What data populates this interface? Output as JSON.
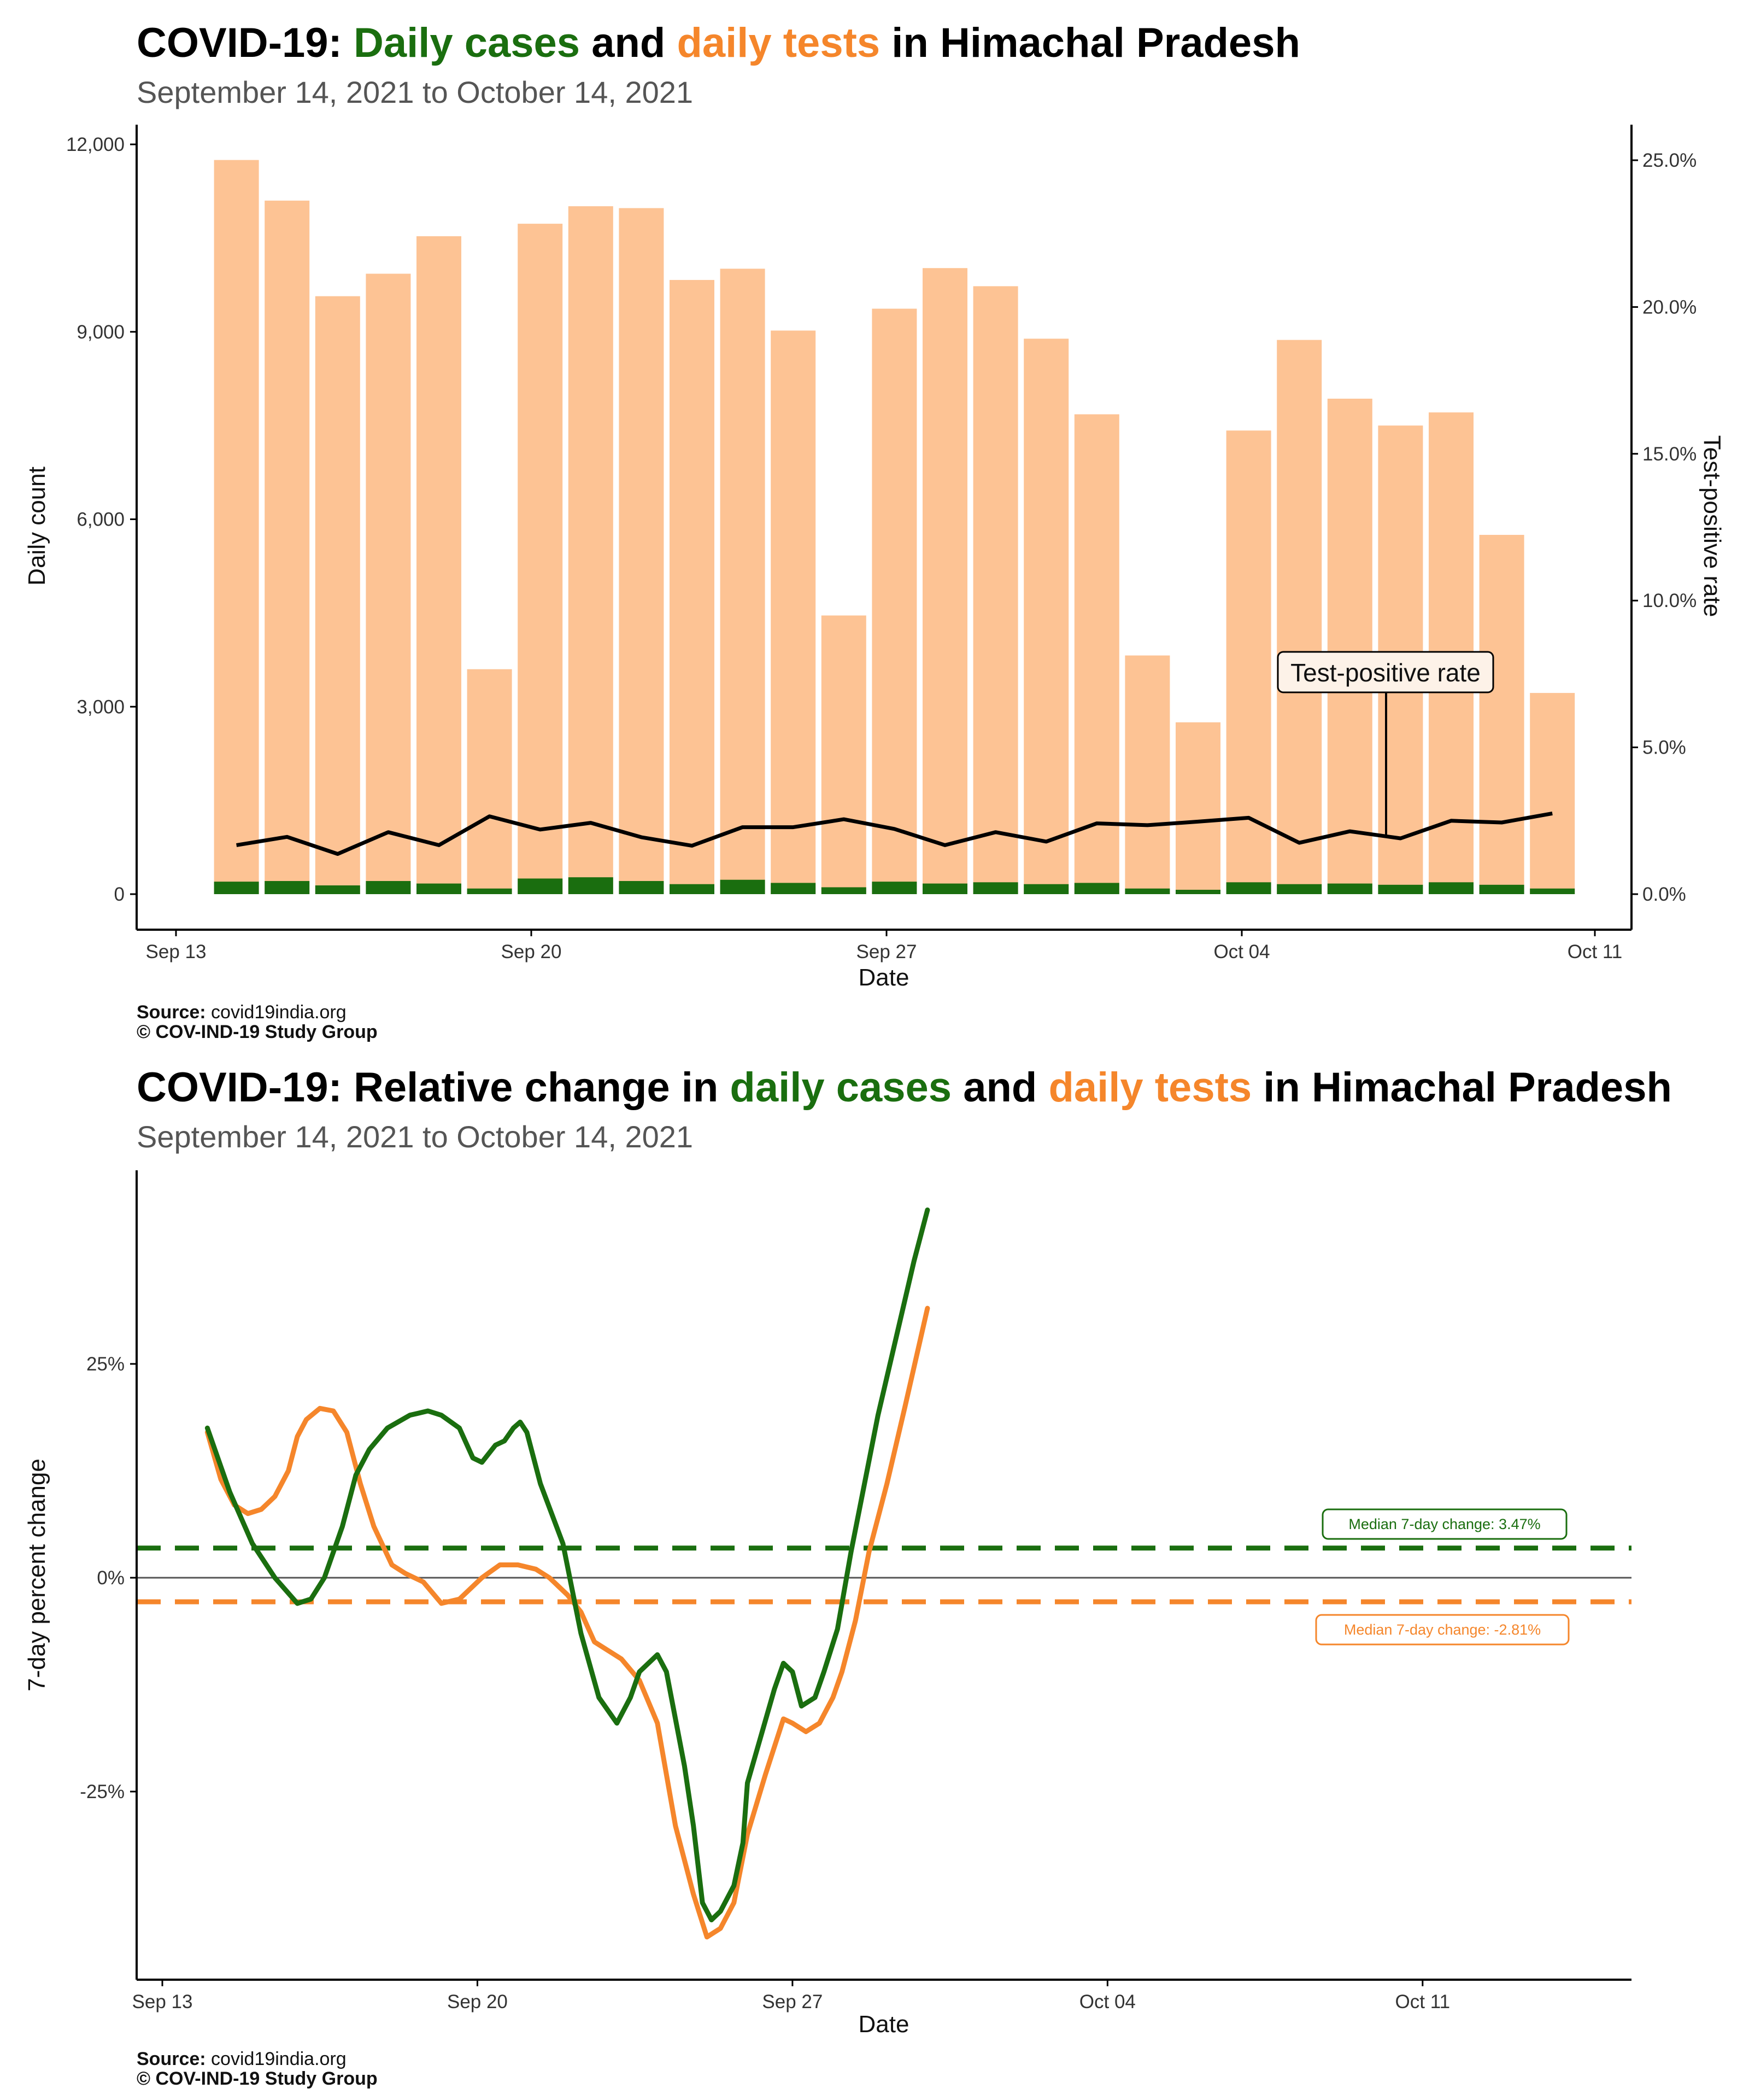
{
  "colors": {
    "cases": "#1a6e0f",
    "tests": "#f5862b",
    "tests_bar": "#fdc394",
    "tpr_line": "#000000",
    "zero_line": "#555555"
  },
  "top": {
    "title": {
      "prefix": "COVID-19: ",
      "cases": "Daily cases",
      "and": " and ",
      "tests": "daily tests",
      "suffix": " in Himachal Pradesh"
    },
    "subtitle": "September 14, 2021 to October 14, 2021",
    "y_left_label": "Daily count",
    "y_right_label": "Test-positive rate",
    "x_label": "Date",
    "annotation": "Test-positive rate",
    "caption_source_label": "Source:",
    "caption_source": " covid19india.org",
    "caption_credit": "© COV-IND-19 Study Group"
  },
  "bottom": {
    "title": {
      "prefix": "COVID-19: Relative change in ",
      "cases": "daily cases",
      "and": " and ",
      "tests": "daily tests",
      "suffix": " in Himachal Pradesh"
    },
    "subtitle": "September 14, 2021 to October 14, 2021",
    "y_label": "7-day percent change",
    "x_label": "Date",
    "median_cases_label": "Median 7-day change: 3.47%",
    "median_tests_label": "Median 7-day change: -2.81%",
    "caption_source_label": "Source:",
    "caption_source": " covid19india.org",
    "caption_credit": "© COV-IND-19 Study Group"
  },
  "chart_data": [
    {
      "type": "bar",
      "title": "COVID-19: Daily cases and daily tests in Himachal Pradesh",
      "subtitle": "September 14, 2021 to October 14, 2021",
      "xlabel": "Date",
      "ylabel": "Daily count",
      "y2label": "Test-positive rate",
      "x_ticks": [
        "Sep 13",
        "Sep 20",
        "Sep 27",
        "Oct 04",
        "Oct 11"
      ],
      "y_ticks": [
        "0",
        "3,000",
        "6,000",
        "9,000",
        "12,000"
      ],
      "y2_ticks": [
        "0.0%",
        "5.0%",
        "10.0%",
        "15.0%",
        "20.0%",
        "25.0%"
      ],
      "ylim": [
        0,
        12000
      ],
      "y2lim": [
        0,
        25
      ],
      "x_start_date": "2021-09-14",
      "categories": [
        "Sep 14",
        "Sep 15",
        "Sep 16",
        "Sep 17",
        "Sep 18",
        "Sep 19",
        "Sep 20",
        "Sep 21",
        "Sep 22",
        "Sep 23",
        "Sep 24",
        "Sep 25",
        "Sep 26",
        "Sep 27",
        "Sep 28",
        "Sep 29",
        "Sep 30",
        "Oct 01",
        "Oct 02",
        "Oct 03",
        "Oct 04",
        "Oct 05",
        "Oct 06",
        "Oct 07",
        "Oct 08",
        "Oct 09",
        "Oct 10",
        "Oct 11"
      ],
      "series": [
        {
          "name": "daily tests",
          "values": [
            11750,
            11100,
            9570,
            9930,
            10530,
            3600,
            10730,
            11010,
            10980,
            9830,
            10010,
            9020,
            4460,
            9370,
            10020,
            9730,
            8890,
            7680,
            3820,
            2750,
            7420,
            8870,
            7930,
            7500,
            7710,
            5750,
            3220,
            0
          ]
        },
        {
          "name": "daily cases",
          "values": [
            200,
            210,
            140,
            210,
            170,
            90,
            250,
            270,
            210,
            160,
            230,
            180,
            110,
            200,
            170,
            190,
            160,
            180,
            90,
            70,
            190,
            160,
            170,
            150,
            190,
            150,
            90,
            0
          ]
        },
        {
          "name": "Test-positive rate",
          "values": [
            1.67,
            1.95,
            1.37,
            2.11,
            1.67,
            2.65,
            2.2,
            2.43,
            1.94,
            1.65,
            2.28,
            2.28,
            2.55,
            2.22,
            1.67,
            2.11,
            1.79,
            2.41,
            2.35,
            2.47,
            2.6,
            1.75,
            2.14,
            1.9,
            2.5,
            2.44,
            2.75,
            null
          ]
        }
      ]
    },
    {
      "type": "line",
      "title": "COVID-19: Relative change in daily cases and daily tests in Himachal Pradesh",
      "subtitle": "September 14, 2021 to October 14, 2021",
      "xlabel": "Date",
      "ylabel": "7-day percent change",
      "x_ticks": [
        "Sep 13",
        "Sep 20",
        "Sep 27",
        "Oct 04",
        "Oct 11"
      ],
      "y_ticks": [
        "-25%",
        "0%",
        "25%"
      ],
      "ylim": [
        -46,
        47
      ],
      "x_start_date": "2021-09-13",
      "series": [
        {
          "name": "daily cases",
          "points": [
            [
              1.0,
              17.5
            ],
            [
              1.5,
              10
            ],
            [
              2.0,
              4
            ],
            [
              2.5,
              0
            ],
            [
              3.0,
              -3
            ],
            [
              3.3,
              -2.5
            ],
            [
              3.6,
              0
            ],
            [
              4.0,
              6
            ],
            [
              4.3,
              12
            ],
            [
              4.6,
              15
            ],
            [
              5.0,
              17.5
            ],
            [
              5.5,
              19
            ],
            [
              5.9,
              19.5
            ],
            [
              6.2,
              19
            ],
            [
              6.6,
              17.5
            ],
            [
              6.9,
              14
            ],
            [
              7.1,
              13.5
            ],
            [
              7.4,
              15.5
            ],
            [
              7.6,
              16
            ],
            [
              7.8,
              17.5
            ],
            [
              7.95,
              18.2
            ],
            [
              8.1,
              17
            ],
            [
              8.4,
              11
            ],
            [
              8.9,
              4
            ],
            [
              9.3,
              -6.5
            ],
            [
              9.7,
              -14
            ],
            [
              10.1,
              -17
            ],
            [
              10.4,
              -14
            ],
            [
              10.6,
              -11
            ],
            [
              11.0,
              -9
            ],
            [
              11.2,
              -11
            ],
            [
              11.6,
              -22
            ],
            [
              11.8,
              -29
            ],
            [
              12.0,
              -38
            ],
            [
              12.2,
              -40
            ],
            [
              12.4,
              -39
            ],
            [
              12.7,
              -36
            ],
            [
              12.9,
              -31
            ],
            [
              13.0,
              -24
            ],
            [
              13.3,
              -18.5
            ],
            [
              13.6,
              -13
            ],
            [
              13.8,
              -10
            ],
            [
              14.0,
              -11
            ],
            [
              14.2,
              -15
            ],
            [
              14.5,
              -14
            ],
            [
              14.7,
              -11
            ],
            [
              15.0,
              -6
            ],
            [
              15.3,
              3
            ],
            [
              15.6,
              11
            ],
            [
              15.9,
              19
            ],
            [
              16.3,
              28
            ],
            [
              16.7,
              37
            ],
            [
              17.0,
              43
            ]
          ]
        },
        {
          "name": "daily tests",
          "points": [
            [
              1.0,
              17
            ],
            [
              1.3,
              11.5
            ],
            [
              1.6,
              8.5
            ],
            [
              1.9,
              7.5
            ],
            [
              2.2,
              8
            ],
            [
              2.5,
              9.5
            ],
            [
              2.8,
              12.5
            ],
            [
              3.0,
              16.5
            ],
            [
              3.2,
              18.5
            ],
            [
              3.5,
              19.8
            ],
            [
              3.8,
              19.5
            ],
            [
              4.1,
              17
            ],
            [
              4.4,
              11
            ],
            [
              4.7,
              6
            ],
            [
              5.1,
              1.5
            ],
            [
              5.4,
              0.5
            ],
            [
              5.8,
              -0.5
            ],
            [
              6.2,
              -3
            ],
            [
              6.6,
              -2.5
            ],
            [
              7.1,
              0
            ],
            [
              7.5,
              1.5
            ],
            [
              7.9,
              1.5
            ],
            [
              8.3,
              1
            ],
            [
              8.6,
              0
            ],
            [
              9.0,
              -2
            ],
            [
              9.3,
              -4
            ],
            [
              9.6,
              -7.5
            ],
            [
              9.9,
              -8.5
            ],
            [
              10.2,
              -9.5
            ],
            [
              10.6,
              -12
            ],
            [
              11.0,
              -17
            ],
            [
              11.4,
              -29
            ],
            [
              11.8,
              -37
            ],
            [
              12.1,
              -42
            ],
            [
              12.4,
              -41
            ],
            [
              12.7,
              -38
            ],
            [
              13.0,
              -30
            ],
            [
              13.4,
              -23
            ],
            [
              13.8,
              -16.5
            ],
            [
              14.0,
              -17
            ],
            [
              14.3,
              -18
            ],
            [
              14.6,
              -17
            ],
            [
              14.9,
              -14
            ],
            [
              15.1,
              -11
            ],
            [
              15.4,
              -5
            ],
            [
              15.7,
              3
            ],
            [
              16.1,
              11
            ],
            [
              16.5,
              20
            ],
            [
              17.0,
              31.5
            ]
          ]
        }
      ],
      "reference_lines": [
        {
          "name": "daily cases median",
          "y": 3.47,
          "label": "Median 7-day change: 3.47%"
        },
        {
          "name": "daily tests median",
          "y": -2.81,
          "label": "Median 7-day change: -2.81%"
        }
      ]
    }
  ]
}
